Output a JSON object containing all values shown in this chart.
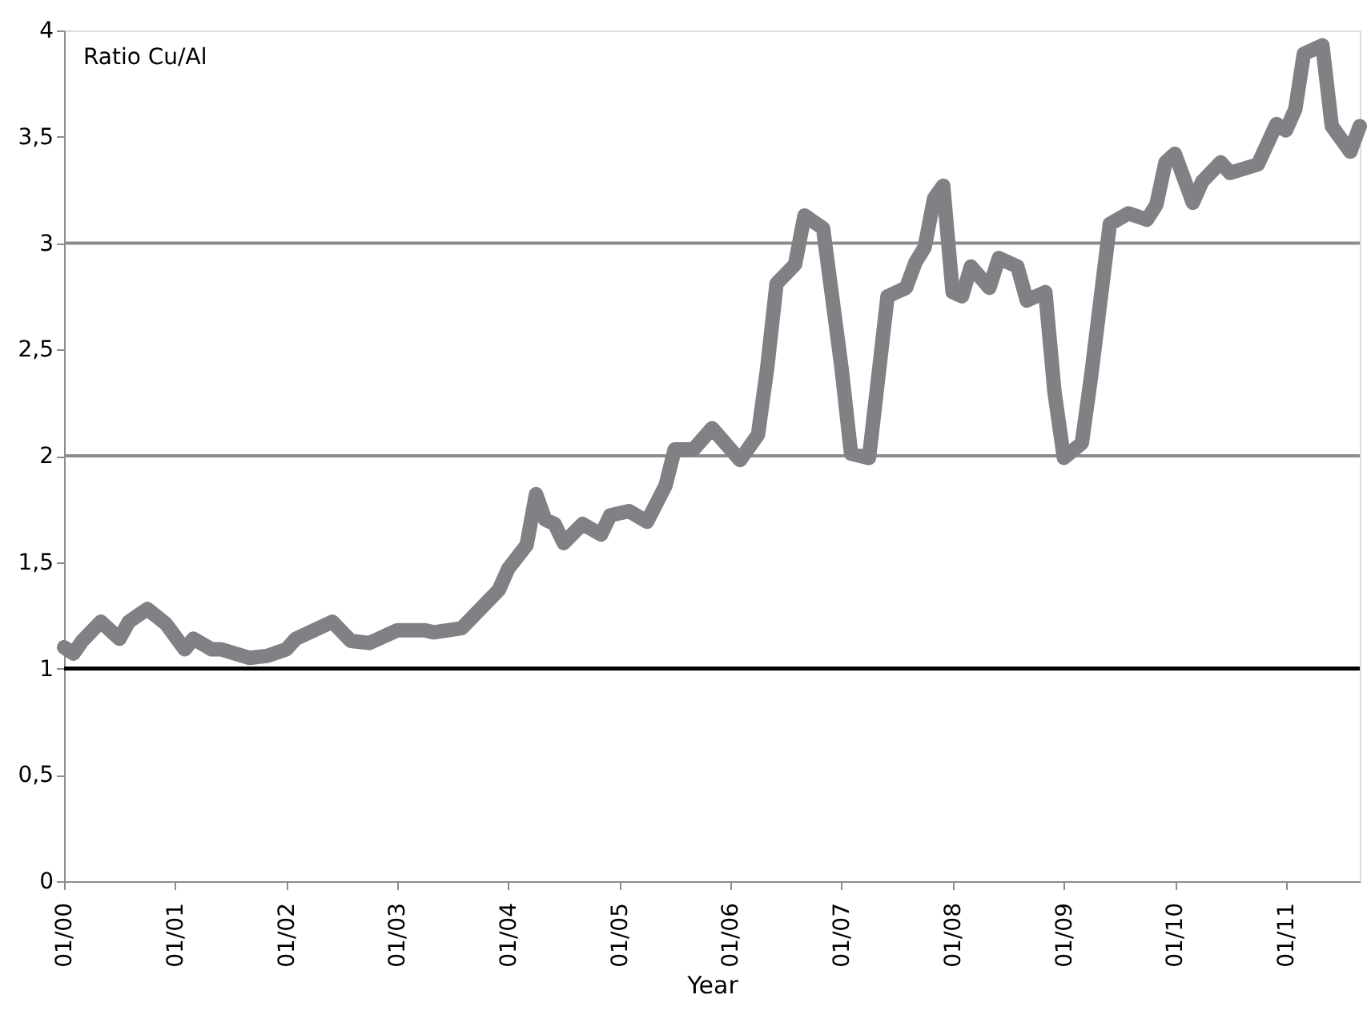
{
  "chart_data": {
    "type": "line",
    "ylabel": "Ratio Cu/Al",
    "xlabel": "Year",
    "x": [
      "2000-01",
      "2000-02",
      "2000-03",
      "2000-05",
      "2000-07",
      "2000-08",
      "2000-10",
      "2000-12",
      "2001-02",
      "2001-03",
      "2001-05",
      "2001-06",
      "2001-09",
      "2001-11",
      "2002-01",
      "2002-02",
      "2002-06",
      "2002-08",
      "2002-10",
      "2003-01",
      "2003-04",
      "2003-05",
      "2003-08",
      "2003-12",
      "2004-01",
      "2004-03",
      "2004-04",
      "2004-05",
      "2004-06",
      "2004-07",
      "2004-09",
      "2004-11",
      "2004-12",
      "2005-02",
      "2005-04",
      "2005-06",
      "2005-07",
      "2005-09",
      "2005-11",
      "2006-02",
      "2006-04",
      "2006-05",
      "2006-06",
      "2006-08",
      "2006-09",
      "2006-11",
      "2007-01",
      "2007-02",
      "2007-04",
      "2007-06",
      "2007-08",
      "2007-09",
      "2007-10",
      "2007-11",
      "2007-12",
      "2008-01",
      "2008-02",
      "2008-03",
      "2008-05",
      "2008-06",
      "2008-08",
      "2008-09",
      "2008-11",
      "2008-12",
      "2009-01",
      "2009-03",
      "2009-04",
      "2009-06",
      "2009-08",
      "2009-10",
      "2009-11",
      "2009-12",
      "2010-01",
      "2010-03",
      "2010-04",
      "2010-06",
      "2010-07",
      "2010-10",
      "2010-12",
      "2011-01",
      "2011-02",
      "2011-03",
      "2011-05",
      "2011-06",
      "2011-08",
      "2011-09"
    ],
    "series": [
      {
        "color": "#808085",
        "values": [
          1.1,
          1.07,
          1.13,
          1.22,
          1.14,
          1.22,
          1.28,
          1.21,
          1.09,
          1.14,
          1.09,
          1.09,
          1.05,
          1.06,
          1.09,
          1.14,
          1.22,
          1.13,
          1.12,
          1.18,
          1.18,
          1.17,
          1.19,
          1.37,
          1.47,
          1.58,
          1.82,
          1.7,
          1.68,
          1.59,
          1.68,
          1.63,
          1.72,
          1.74,
          1.69,
          1.86,
          2.03,
          2.03,
          2.13,
          1.98,
          2.1,
          2.41,
          2.81,
          2.9,
          3.13,
          3.07,
          2.41,
          2.01,
          1.99,
          2.75,
          2.79,
          2.91,
          2.98,
          3.21,
          3.27,
          2.77,
          2.75,
          2.89,
          2.79,
          2.93,
          2.89,
          2.73,
          2.77,
          2.3,
          1.99,
          2.06,
          2.38,
          3.09,
          3.14,
          3.11,
          3.18,
          3.38,
          3.42,
          3.19,
          3.29,
          3.38,
          3.33,
          3.37,
          3.56,
          3.53,
          3.63,
          3.89,
          3.93,
          3.55,
          3.43,
          3.55
        ]
      }
    ],
    "xlim": [
      "2000-01",
      "2011-09"
    ],
    "xticks": [
      {
        "value": "2000-01",
        "label": "01/00"
      },
      {
        "value": "2001-01",
        "label": "01/01"
      },
      {
        "value": "2002-01",
        "label": "01/02"
      },
      {
        "value": "2003-01",
        "label": "01/03"
      },
      {
        "value": "2004-01",
        "label": "01/04"
      },
      {
        "value": "2005-01",
        "label": "01/05"
      },
      {
        "value": "2006-01",
        "label": "01/06"
      },
      {
        "value": "2007-01",
        "label": "01/07"
      },
      {
        "value": "2008-01",
        "label": "01/08"
      },
      {
        "value": "2009-01",
        "label": "01/09"
      },
      {
        "value": "2010-01",
        "label": "01/10"
      },
      {
        "value": "2011-01",
        "label": "01/11"
      }
    ],
    "ylim": [
      0,
      4
    ],
    "yticks": [
      0,
      {
        "value": 0.5,
        "label": "0,5"
      },
      1,
      {
        "value": 1.5,
        "label": "1,5"
      },
      2,
      {
        "value": 2.5,
        "label": "2,5"
      },
      3,
      {
        "value": 3.5,
        "label": "3,5"
      },
      4
    ],
    "ref_lines": [
      {
        "axis": "y",
        "value": 1,
        "color": "#000000"
      },
      {
        "axis": "y",
        "value": 2,
        "color": "#8c8c8c"
      },
      {
        "axis": "y",
        "value": 3,
        "color": "#8c8c8c"
      }
    ],
    "grid": false
  }
}
